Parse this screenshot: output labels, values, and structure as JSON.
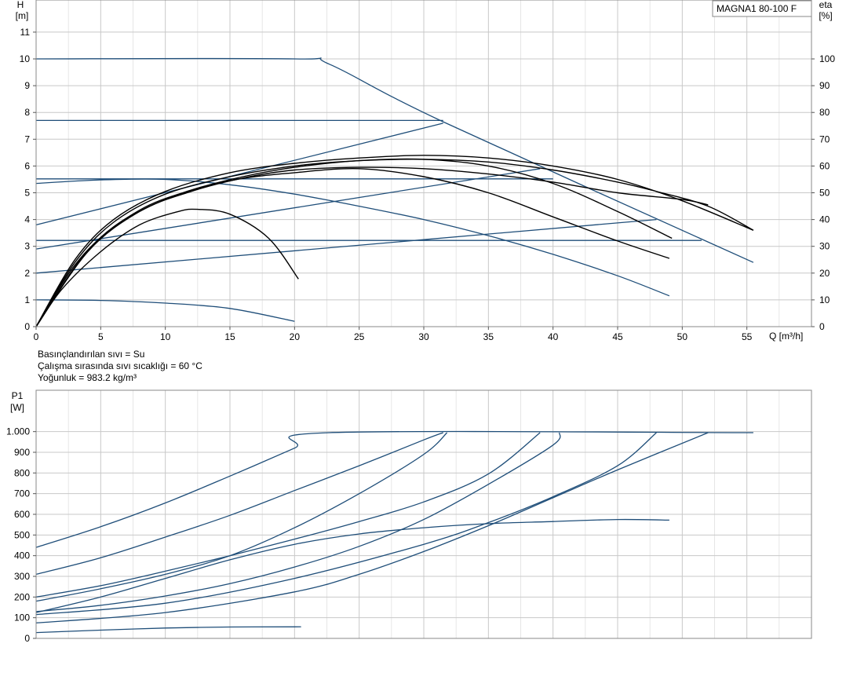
{
  "chart_data": [
    {
      "id": "head",
      "type": "line",
      "model": "MAGNA1 80-100 F",
      "xlabel": "Q [m³/h]",
      "ylabel_top": "H",
      "ylabel_bottom": "[m]",
      "y2label_top": "eta",
      "y2label_bottom": "[%]",
      "xlim": [
        0,
        60
      ],
      "ylim": [
        0,
        12.2
      ],
      "y2lim": [
        0,
        122
      ],
      "x_ticks": [
        0,
        5,
        10,
        15,
        20,
        25,
        30,
        35,
        40,
        45,
        50,
        55
      ],
      "y_ticks": [
        0,
        1,
        2,
        3,
        4,
        5,
        6,
        7,
        8,
        9,
        10,
        11
      ],
      "y2_ticks": [
        0,
        10,
        20,
        30,
        40,
        50,
        60,
        70,
        80,
        90,
        100
      ],
      "grid": true,
      "info": [
        "Basınçlandırılan sıvı = Su",
        "Çalışma sırasında sıvı sıcaklığı = 60 °C",
        "Yoğunluk = 983.2 kg/m³"
      ],
      "series": [
        {
          "color": "#1f4e79",
          "points": [
            [
              0,
              10
            ],
            [
              20,
              10
            ],
            [
              22.7,
              9.8
            ],
            [
              31.5,
              7.65
            ],
            [
              55.5,
              2.4
            ]
          ]
        },
        {
          "color": "#1f4e79",
          "points": [
            [
              0,
              7.7
            ],
            [
              31.5,
              7.7
            ]
          ]
        },
        {
          "color": "#1f4e79",
          "points": [
            [
              0,
              5.52
            ],
            [
              40,
              5.52
            ]
          ]
        },
        {
          "color": "#1f4e79",
          "points": [
            [
              0,
              3.22
            ],
            [
              51.5,
              3.22
            ]
          ]
        },
        {
          "color": "#1f4e79",
          "points": [
            [
              0,
              3.8
            ],
            [
              31.5,
              7.6
            ]
          ]
        },
        {
          "color": "#1f4e79",
          "points": [
            [
              0,
              2.9
            ],
            [
              39,
              5.9
            ]
          ]
        },
        {
          "color": "#1f4e79",
          "points": [
            [
              0,
              2.0
            ],
            [
              48,
              4.0
            ]
          ]
        },
        {
          "color": "#1f4e79",
          "points": [
            [
              0,
              5.35
            ],
            [
              5,
              5.48
            ],
            [
              10,
              5.5
            ],
            [
              15,
              5.3
            ],
            [
              20,
              4.95
            ],
            [
              25,
              4.5
            ],
            [
              30,
              4.0
            ],
            [
              35,
              3.4
            ],
            [
              40,
              2.7
            ],
            [
              45,
              1.9
            ],
            [
              49,
              1.15
            ]
          ]
        },
        {
          "color": "#1f4e79",
          "points": [
            [
              0,
              1.0
            ],
            [
              5,
              0.98
            ],
            [
              10,
              0.88
            ],
            [
              15,
              0.68
            ],
            [
              20,
              0.2
            ]
          ]
        },
        {
          "color": "#000000",
          "points": [
            [
              0,
              0
            ],
            [
              2,
              1.4
            ],
            [
              5,
              2.8
            ],
            [
              8,
              3.8
            ],
            [
              11,
              4.3
            ],
            [
              12.5,
              4.38
            ],
            [
              15,
              4.2
            ],
            [
              18,
              3.3
            ],
            [
              20.3,
              1.78
            ]
          ]
        },
        {
          "color": "#000000",
          "points": [
            [
              0,
              0
            ],
            [
              3,
              2.3
            ],
            [
              6,
              3.7
            ],
            [
              10,
              4.75
            ],
            [
              15,
              5.45
            ],
            [
              20,
              5.75
            ],
            [
              25,
              5.9
            ],
            [
              30,
              5.6
            ],
            [
              35,
              5.0
            ],
            [
              40,
              4.1
            ],
            [
              45,
              3.2
            ],
            [
              49,
              2.55
            ]
          ]
        },
        {
          "color": "#000000",
          "points": [
            [
              0,
              0
            ],
            [
              3,
              2.4
            ],
            [
              6,
              3.9
            ],
            [
              10,
              4.95
            ],
            [
              15,
              5.6
            ],
            [
              20,
              6.0
            ],
            [
              25,
              6.2
            ],
            [
              30,
              6.25
            ],
            [
              35,
              6.15
            ],
            [
              40,
              5.85
            ],
            [
              45,
              5.4
            ],
            [
              48,
              5.05
            ],
            [
              52,
              4.5
            ],
            [
              55.5,
              3.6
            ]
          ]
        },
        {
          "color": "#000000",
          "points": [
            [
              0,
              0
            ],
            [
              3,
              2.5
            ],
            [
              6,
              4.0
            ],
            [
              10,
              5.05
            ],
            [
              15,
              5.75
            ],
            [
              20,
              6.1
            ],
            [
              25,
              6.3
            ],
            [
              30,
              6.4
            ],
            [
              35,
              6.3
            ],
            [
              40,
              6.0
            ],
            [
              45,
              5.5
            ],
            [
              50,
              4.7
            ],
            [
              55.5,
              3.6
            ]
          ]
        },
        {
          "color": "#000000",
          "points": [
            [
              0,
              0
            ],
            [
              4,
              2.8
            ],
            [
              8,
              4.3
            ],
            [
              12,
              5.05
            ],
            [
              16,
              5.55
            ],
            [
              20,
              5.85
            ],
            [
              25,
              5.95
            ],
            [
              30,
              5.9
            ],
            [
              35,
              5.7
            ],
            [
              40,
              5.4
            ],
            [
              45,
              5.0
            ],
            [
              50,
              4.75
            ],
            [
              52,
              4.55
            ]
          ]
        },
        {
          "color": "#000000",
          "points": [
            [
              0,
              0
            ],
            [
              4,
              2.85
            ],
            [
              8,
              4.35
            ],
            [
              12,
              5.1
            ],
            [
              16,
              5.6
            ],
            [
              20,
              5.95
            ],
            [
              25,
              6.2
            ],
            [
              30,
              6.25
            ],
            [
              35,
              6.0
            ],
            [
              40,
              5.35
            ],
            [
              45,
              4.3
            ],
            [
              49.2,
              3.3
            ]
          ]
        }
      ]
    },
    {
      "id": "power",
      "type": "line",
      "ylabel_top": "P1",
      "ylabel_bottom": "[W]",
      "xlim": [
        0,
        60
      ],
      "ylim": [
        0,
        1200
      ],
      "y_ticks": [
        0,
        100,
        200,
        300,
        400,
        500,
        600,
        700,
        800,
        900,
        1000
      ],
      "y_tick_labels": [
        "0",
        "100",
        "200",
        "300",
        "400",
        "500",
        "600",
        "700",
        "800",
        "900",
        "1.000"
      ],
      "grid": true,
      "series": [
        {
          "color": "#1f4e79",
          "points": [
            [
              0,
              440
            ],
            [
              5,
              540
            ],
            [
              10,
              655
            ],
            [
              15,
              785
            ],
            [
              20,
              920
            ],
            [
              22.7,
              995
            ],
            [
              55.5,
              995
            ]
          ]
        },
        {
          "color": "#1f4e79",
          "points": [
            [
              0,
              310
            ],
            [
              5,
              390
            ],
            [
              10,
              490
            ],
            [
              15,
              595
            ],
            [
              20,
              715
            ],
            [
              25,
              835
            ],
            [
              30,
              960
            ],
            [
              31.5,
              995
            ]
          ]
        },
        {
          "color": "#1f4e79",
          "points": [
            [
              0,
              180
            ],
            [
              5,
              240
            ],
            [
              10,
              310
            ],
            [
              15,
              400
            ],
            [
              20,
              535
            ],
            [
              25,
              700
            ],
            [
              30,
              890
            ],
            [
              31.8,
              995
            ]
          ]
        },
        {
          "color": "#1f4e79",
          "points": [
            [
              0,
              200
            ],
            [
              5,
              255
            ],
            [
              10,
              325
            ],
            [
              15,
              400
            ],
            [
              20,
              480
            ],
            [
              25,
              565
            ],
            [
              30,
              660
            ],
            [
              35,
              795
            ],
            [
              39,
              995
            ]
          ]
        },
        {
          "color": "#1f4e79",
          "points": [
            [
              0,
              130
            ],
            [
              5,
              160
            ],
            [
              10,
              205
            ],
            [
              15,
              265
            ],
            [
              20,
              345
            ],
            [
              25,
              445
            ],
            [
              30,
              575
            ],
            [
              35,
              745
            ],
            [
              40,
              935
            ],
            [
              40.5,
              995
            ]
          ]
        },
        {
          "color": "#1f4e79",
          "points": [
            [
              0,
              115
            ],
            [
              10,
              170
            ],
            [
              20,
              290
            ],
            [
              30,
              455
            ],
            [
              35,
              560
            ],
            [
              40,
              685
            ],
            [
              45,
              835
            ],
            [
              48,
              995
            ]
          ]
        },
        {
          "color": "#1f4e79",
          "points": [
            [
              0,
              75
            ],
            [
              10,
              125
            ],
            [
              20,
              225
            ],
            [
              25,
              310
            ],
            [
              30,
              420
            ],
            [
              35,
              545
            ],
            [
              40,
              680
            ],
            [
              45,
              815
            ],
            [
              52,
              995
            ]
          ]
        },
        {
          "color": "#1f4e79",
          "points": [
            [
              0,
              125
            ],
            [
              5,
              200
            ],
            [
              10,
              290
            ],
            [
              15,
              380
            ],
            [
              20,
              455
            ],
            [
              25,
              505
            ],
            [
              30,
              535
            ],
            [
              35,
              555
            ],
            [
              40,
              565
            ],
            [
              45,
              575
            ],
            [
              49,
              572
            ]
          ]
        },
        {
          "color": "#1f4e79",
          "points": [
            [
              0,
              28
            ],
            [
              5,
              40
            ],
            [
              10,
              50
            ],
            [
              15,
              55
            ],
            [
              20,
              56
            ],
            [
              20.3,
              56
            ]
          ]
        }
      ]
    }
  ]
}
